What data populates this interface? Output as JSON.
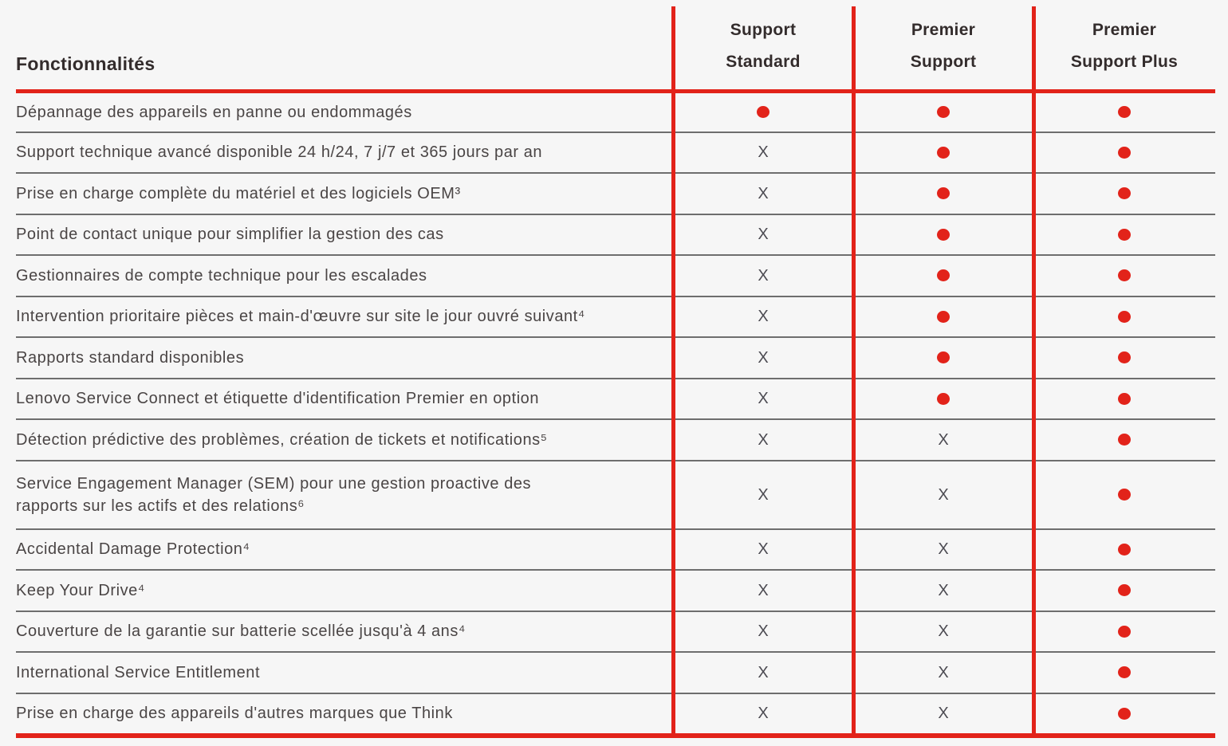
{
  "colors": {
    "accent_red": "#e2231a",
    "separator_gray": "#6e6e6e",
    "background_gray": "#f6f6f6",
    "header_text": "#332c2c",
    "body_text": "#4a4545"
  },
  "table": {
    "features_header": "Fonctionnalités",
    "columns": [
      {
        "id": "support_standard",
        "label": "Support\nStandard"
      },
      {
        "id": "premier_support",
        "label": "Premier\nSupport"
      },
      {
        "id": "premier_support_plus",
        "label": "Premier\nSupport Plus"
      }
    ],
    "marks": {
      "included": "dot",
      "excluded_glyph": "X"
    },
    "rows": [
      {
        "feature": "Dépannage des appareils en panne ou endommagés",
        "values": [
          "dot",
          "dot",
          "dot"
        ]
      },
      {
        "feature": "Support technique avancé disponible 24 h/24, 7 j/7 et 365 jours par an",
        "values": [
          "x",
          "dot",
          "dot"
        ]
      },
      {
        "feature": "Prise en charge complète du matériel et des logiciels OEM³",
        "values": [
          "x",
          "dot",
          "dot"
        ]
      },
      {
        "feature": "Point de contact unique pour simplifier la gestion des cas",
        "values": [
          "x",
          "dot",
          "dot"
        ]
      },
      {
        "feature": "Gestionnaires de compte technique pour les escalades",
        "values": [
          "x",
          "dot",
          "dot"
        ]
      },
      {
        "feature": "Intervention prioritaire pièces et main-d'œuvre sur site le jour ouvré suivant⁴",
        "values": [
          "x",
          "dot",
          "dot"
        ]
      },
      {
        "feature": "Rapports standard disponibles",
        "values": [
          "x",
          "dot",
          "dot"
        ]
      },
      {
        "feature": "Lenovo Service Connect et étiquette d'identification Premier en option",
        "values": [
          "x",
          "dot",
          "dot"
        ]
      },
      {
        "feature": "Détection prédictive des problèmes, création de tickets et notifications⁵",
        "values": [
          "x",
          "x",
          "dot"
        ]
      },
      {
        "feature": "Service Engagement Manager (SEM) pour une gestion proactive des\nrapports sur les actifs et des relations⁶",
        "values": [
          "x",
          "x",
          "dot"
        ]
      },
      {
        "feature": "Accidental Damage Protection⁴",
        "values": [
          "x",
          "x",
          "dot"
        ]
      },
      {
        "feature": "Keep Your Drive⁴",
        "values": [
          "x",
          "x",
          "dot"
        ]
      },
      {
        "feature": "Couverture de la garantie sur batterie scellée jusqu'à 4 ans⁴",
        "values": [
          "x",
          "x",
          "dot"
        ]
      },
      {
        "feature": "International Service Entitlement",
        "values": [
          "x",
          "x",
          "dot"
        ]
      },
      {
        "feature": "Prise en charge des appareils d'autres marques que Think",
        "values": [
          "x",
          "x",
          "dot"
        ]
      }
    ]
  }
}
